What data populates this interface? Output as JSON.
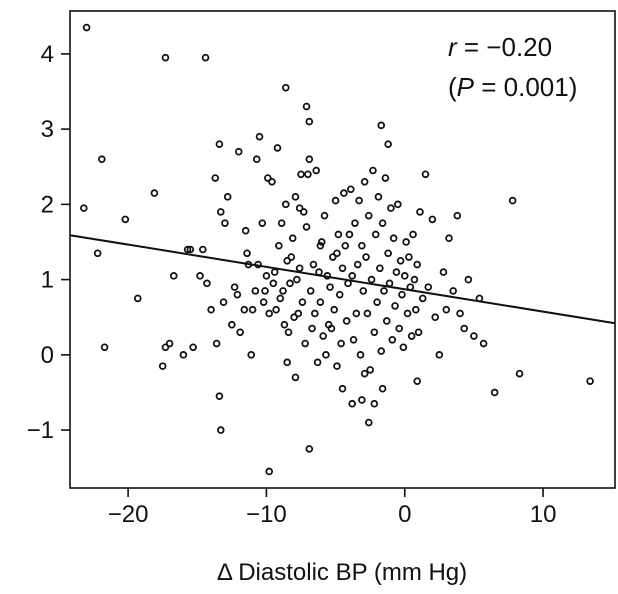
{
  "chart_data": {
    "type": "scatter",
    "xlabel": "Δ Diastolic BP (mm Hg)",
    "ylabel": "",
    "xlim": [
      -24.2,
      15.2
    ],
    "ylim": [
      -1.77,
      4.57
    ],
    "x_ticks": [
      -20,
      -10,
      0,
      10
    ],
    "x_tick_labels": [
      "−20",
      "−10",
      "0",
      "10"
    ],
    "y_ticks": [
      -1,
      0,
      1,
      2,
      3,
      4
    ],
    "y_tick_labels": [
      "−1",
      "0",
      "1",
      "2",
      "3",
      "4"
    ],
    "grid": false,
    "annotation": {
      "line1_italic": "r",
      "line1_rest": " = −0.20",
      "line2_open": "(",
      "line2_italic": "P",
      "line2_rest": " = 0.001)"
    },
    "regression_line": {
      "x": [
        -24.2,
        15.2
      ],
      "y": [
        1.59,
        0.42
      ]
    },
    "points": [
      [
        -23,
        4.35
      ],
      [
        -17.3,
        3.95
      ],
      [
        -14.4,
        3.95
      ],
      [
        -8.6,
        3.55
      ],
      [
        -7.1,
        3.3
      ],
      [
        -6.9,
        3.1
      ],
      [
        -1.7,
        3.05
      ],
      [
        -1.2,
        2.8
      ],
      [
        -23.2,
        1.95
      ],
      [
        -22.2,
        1.35
      ],
      [
        -21.9,
        2.6
      ],
      [
        -21.7,
        0.1
      ],
      [
        -20.2,
        1.8
      ],
      [
        -19.3,
        0.75
      ],
      [
        -18.1,
        2.15
      ],
      [
        -17.5,
        -0.15
      ],
      [
        -17.3,
        0.1
      ],
      [
        -17,
        0.15
      ],
      [
        -16.7,
        1.05
      ],
      [
        -16,
        0.0
      ],
      [
        -15.7,
        1.4
      ],
      [
        -15.5,
        1.4
      ],
      [
        -15.3,
        0.1
      ],
      [
        -14.8,
        1.05
      ],
      [
        -14.6,
        1.4
      ],
      [
        -14.3,
        0.95
      ],
      [
        -14,
        0.6
      ],
      [
        -13.7,
        2.35
      ],
      [
        -13.6,
        0.15
      ],
      [
        -13.4,
        2.8
      ],
      [
        -13.3,
        1.9
      ],
      [
        -13.1,
        0.7
      ],
      [
        -13,
        1.75
      ],
      [
        -12.8,
        2.1
      ],
      [
        -12.5,
        0.4
      ],
      [
        -12.3,
        0.9
      ],
      [
        -12.1,
        0.8
      ],
      [
        -12,
        2.7
      ],
      [
        -11.9,
        0.3
      ],
      [
        -11.6,
        0.6
      ],
      [
        -11.5,
        1.65
      ],
      [
        -11.4,
        1.35
      ],
      [
        -11.3,
        1.2
      ],
      [
        -11.1,
        0.0
      ],
      [
        -11,
        0.6
      ],
      [
        -10.8,
        0.85
      ],
      [
        -10.7,
        2.6
      ],
      [
        -10.6,
        1.2
      ],
      [
        -10.5,
        2.9
      ],
      [
        -10.3,
        1.75
      ],
      [
        -10.2,
        0.7
      ],
      [
        -10.1,
        0.85
      ],
      [
        -10,
        1.05
      ],
      [
        -9.9,
        2.35
      ],
      [
        -9.8,
        0.55
      ],
      [
        -9.6,
        2.3
      ],
      [
        -9.5,
        0.95
      ],
      [
        -9.4,
        1.1
      ],
      [
        -9.3,
        0.6
      ],
      [
        -9.2,
        2.75
      ],
      [
        -9.1,
        1.45
      ],
      [
        -9,
        0.75
      ],
      [
        -8.9,
        1.75
      ],
      [
        -8.8,
        0.85
      ],
      [
        -8.7,
        0.4
      ],
      [
        -8.6,
        2.0
      ],
      [
        -8.5,
        1.25
      ],
      [
        -8.4,
        0.3
      ],
      [
        -8.3,
        0.95
      ],
      [
        -8.2,
        1.3
      ],
      [
        -8.1,
        1.55
      ],
      [
        -8,
        0.5
      ],
      [
        -7.9,
        2.1
      ],
      [
        -7.8,
        1.0
      ],
      [
        -7.7,
        0.55
      ],
      [
        -7.6,
        1.15
      ],
      [
        -7.5,
        2.4
      ],
      [
        -7.4,
        0.7
      ],
      [
        -7.3,
        1.9
      ],
      [
        -7.2,
        0.15
      ],
      [
        -7.1,
        1.7
      ],
      [
        -7,
        2.4
      ],
      [
        -6.9,
        2.6
      ],
      [
        -6.8,
        0.85
      ],
      [
        -6.7,
        0.35
      ],
      [
        -6.6,
        1.2
      ],
      [
        -6.5,
        0.55
      ],
      [
        -6.4,
        2.45
      ],
      [
        -6.3,
        -0.1
      ],
      [
        -6.2,
        1.1
      ],
      [
        -6.1,
        0.7
      ],
      [
        -6,
        1.5
      ],
      [
        -5.9,
        0.25
      ],
      [
        -5.8,
        1.85
      ],
      [
        -5.7,
        0.0
      ],
      [
        -5.6,
        1.05
      ],
      [
        -5.5,
        0.4
      ],
      [
        -5.4,
        0.9
      ],
      [
        -5.3,
        0.35
      ],
      [
        -5.2,
        1.3
      ],
      [
        -5.1,
        0.6
      ],
      [
        -5,
        2.05
      ],
      [
        -4.9,
        -0.15
      ],
      [
        -4.8,
        1.6
      ],
      [
        -4.7,
        0.8
      ],
      [
        -4.6,
        0.15
      ],
      [
        -4.5,
        1.15
      ],
      [
        -4.4,
        2.15
      ],
      [
        -4.3,
        1.45
      ],
      [
        -4.2,
        0.45
      ],
      [
        -4.1,
        0.95
      ],
      [
        -4,
        1.6
      ],
      [
        -3.9,
        2.2
      ],
      [
        -3.8,
        1.05
      ],
      [
        -3.7,
        0.2
      ],
      [
        -3.6,
        1.75
      ],
      [
        -3.5,
        0.55
      ],
      [
        -3.4,
        1.2
      ],
      [
        -3.3,
        2.05
      ],
      [
        -3.2,
        0.0
      ],
      [
        -3.1,
        1.45
      ],
      [
        -3,
        0.85
      ],
      [
        -2.9,
        2.3
      ],
      [
        -2.8,
        1.3
      ],
      [
        -2.7,
        0.55
      ],
      [
        -2.6,
        1.85
      ],
      [
        -2.5,
        -0.2
      ],
      [
        -2.4,
        1.0
      ],
      [
        -2.3,
        2.45
      ],
      [
        -2.2,
        0.3
      ],
      [
        -2.1,
        1.6
      ],
      [
        -2,
        0.7
      ],
      [
        -1.9,
        2.1
      ],
      [
        -1.8,
        1.15
      ],
      [
        -1.7,
        0.05
      ],
      [
        -1.6,
        1.75
      ],
      [
        -1.5,
        0.85
      ],
      [
        -1.4,
        2.35
      ],
      [
        -1.3,
        0.45
      ],
      [
        -1.2,
        1.35
      ],
      [
        -1.1,
        0.95
      ],
      [
        -1,
        1.95
      ],
      [
        -0.9,
        0.2
      ],
      [
        -0.8,
        1.55
      ],
      [
        -0.7,
        0.65
      ],
      [
        -0.6,
        1.1
      ],
      [
        -0.5,
        2.0
      ],
      [
        -0.4,
        0.35
      ],
      [
        -0.3,
        1.25
      ],
      [
        -0.2,
        0.8
      ],
      [
        -0.1,
        0.1
      ],
      [
        0,
        1.05
      ],
      [
        0.1,
        1.5
      ],
      [
        0.2,
        0.55
      ],
      [
        0.3,
        1.3
      ],
      [
        0.4,
        0.9
      ],
      [
        0.5,
        0.25
      ],
      [
        0.6,
        1.6
      ],
      [
        0.7,
        1.0
      ],
      [
        0.8,
        0.6
      ],
      [
        0.9,
        1.2
      ],
      [
        1,
        0.3
      ],
      [
        1.1,
        1.9
      ],
      [
        1.3,
        0.75
      ],
      [
        1.5,
        2.4
      ],
      [
        1.7,
        0.9
      ],
      [
        2,
        1.8
      ],
      [
        2.2,
        0.5
      ],
      [
        2.5,
        0.0
      ],
      [
        2.8,
        1.1
      ],
      [
        3,
        0.6
      ],
      [
        3.2,
        1.55
      ],
      [
        3.5,
        0.85
      ],
      [
        3.8,
        1.85
      ],
      [
        4,
        0.55
      ],
      [
        4.3,
        0.35
      ],
      [
        4.6,
        1.0
      ],
      [
        5,
        0.25
      ],
      [
        5.4,
        0.75
      ],
      [
        5.7,
        0.15
      ],
      [
        6.5,
        -0.5
      ],
      [
        7.8,
        2.05
      ],
      [
        8.3,
        -0.25
      ],
      [
        13.4,
        -0.35
      ],
      [
        -13.4,
        -0.55
      ],
      [
        -13.3,
        -1.0
      ],
      [
        -9.8,
        -1.55
      ],
      [
        -6.9,
        -1.25
      ],
      [
        -4.5,
        -0.45
      ],
      [
        -3.8,
        -0.65
      ],
      [
        -3.1,
        -0.6
      ],
      [
        -2.6,
        -0.9
      ],
      [
        -2.2,
        -0.65
      ],
      [
        -1.6,
        -0.45
      ],
      [
        -2.9,
        -0.25
      ],
      [
        0.9,
        -0.35
      ],
      [
        -7.9,
        -0.3
      ],
      [
        -8.5,
        -0.1
      ],
      [
        -7.6,
        1.95
      ],
      [
        -6.1,
        1.45
      ],
      [
        -4.9,
        1.35
      ]
    ]
  }
}
